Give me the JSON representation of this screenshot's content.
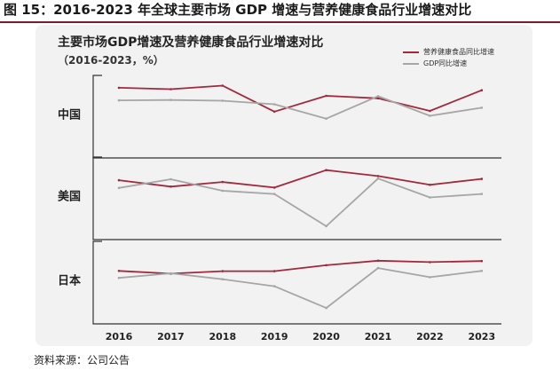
{
  "figure_title": "图 15：2016-2023 年全球主要市场 GDP 增速与营养健康食品行业增速对比",
  "source": "资料来源：公司公告",
  "colors": {
    "health_food": "#a3283c",
    "gdp": "#a6a6a6",
    "axis": "#333333",
    "title_rule": "#7a1c2c"
  },
  "chart_data": {
    "type": "line",
    "title": "主要市场GDP增速及营养健康食品行业增速对比",
    "subtitle": "（2016-2023，%）",
    "legend": {
      "position": "top-right",
      "entries": [
        "营养健康食品同比增速",
        "GDP同比增速"
      ]
    },
    "x": [
      "2016",
      "2017",
      "2018",
      "2019",
      "2020",
      "2021",
      "2022",
      "2023"
    ],
    "grid": false,
    "panels": [
      {
        "label": "中国",
        "series": [
          {
            "name": "营养健康食品同比增速",
            "values": [
              8.0,
              7.6,
              8.6,
              1.2,
              5.7,
              5.0,
              1.4,
              7.3
            ]
          },
          {
            "name": "GDP同比增速",
            "values": [
              4.4,
              4.5,
              4.3,
              3.3,
              -0.8,
              5.6,
              0.0,
              2.3
            ]
          }
        ]
      },
      {
        "label": "美国",
        "series": [
          {
            "name": "营养健康食品同比增速",
            "values": [
              4.9,
              3.1,
              4.4,
              2.8,
              7.8,
              6.1,
              3.6,
              5.3
            ]
          },
          {
            "name": "GDP同比增速",
            "values": [
              2.7,
              5.2,
              1.9,
              1.0,
              -8.2,
              5.4,
              0.0,
              1.0
            ]
          }
        ]
      },
      {
        "label": "日本",
        "series": [
          {
            "name": "营养健康食品同比增速",
            "values": [
              3.1,
              2.3,
              3.0,
              3.0,
              4.7,
              6.0,
              5.6,
              5.9
            ]
          },
          {
            "name": "GDP同比增速",
            "values": [
              1.1,
              2.4,
              0.7,
              -1.3,
              -7.5,
              3.9,
              1.3,
              3.1
            ]
          }
        ]
      }
    ]
  }
}
